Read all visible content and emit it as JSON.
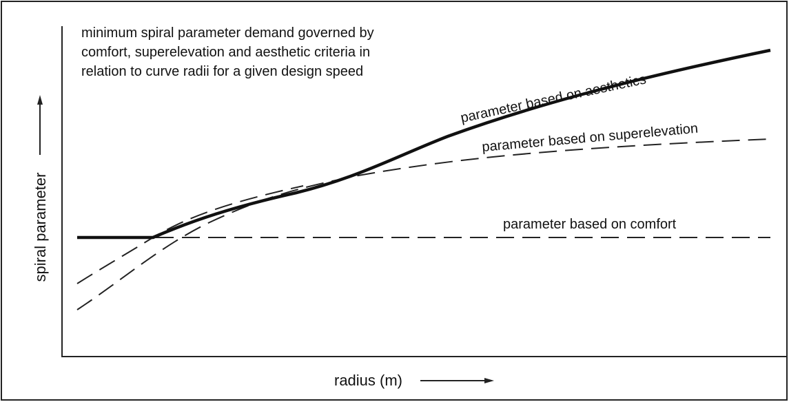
{
  "title": [
    "minimum spiral parameter demand governed by",
    "comfort, superelevation and aesthetic criteria in",
    "relation to curve radii for a given design speed"
  ],
  "y_axis_label": "spiral parameter",
  "x_axis_label": "radius (m)",
  "curve_labels": {
    "aesthetics": "parameter based on aesthetics",
    "superelevation": "parameter based on superelevation",
    "comfort": "parameter based on comfort"
  }
}
